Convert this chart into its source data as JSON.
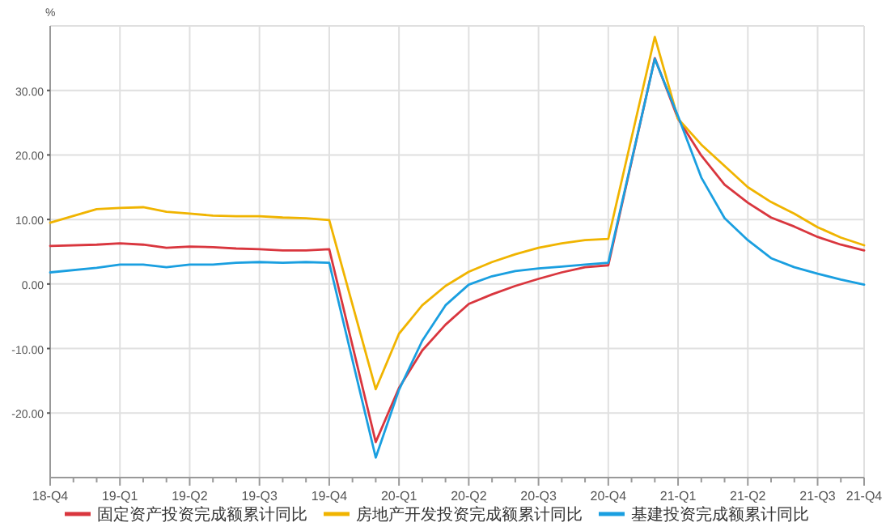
{
  "chart_data": {
    "type": "line",
    "ylabel": "%",
    "legend": "bottom",
    "grid": true,
    "line_style": "solid",
    "marker": "none",
    "categories": [
      "18-Q4",
      null,
      null,
      "19-Q1",
      null,
      null,
      "19-Q2",
      null,
      null,
      "19-Q3",
      null,
      null,
      "19-Q4",
      null,
      null,
      "20-Q1",
      null,
      null,
      "20-Q2",
      null,
      null,
      "20-Q3",
      null,
      null,
      "20-Q4",
      null,
      null,
      "21-Q1",
      null,
      null,
      "21-Q2",
      null,
      null,
      "21-Q3",
      null,
      "21-Q4"
    ],
    "ylim": [
      -30,
      40
    ],
    "yticks": [
      {
        "value": -20,
        "label": "-20.00"
      },
      {
        "value": -10,
        "label": "-10.00"
      },
      {
        "value": 0,
        "label": "0.00"
      },
      {
        "value": 10,
        "label": "10.00"
      },
      {
        "value": 20,
        "label": "20.00"
      },
      {
        "value": 30,
        "label": "30.00"
      }
    ],
    "series": [
      {
        "name": "固定资产投资完成额累计同比",
        "color": "#d9363e",
        "values": [
          5.9,
          null,
          6.1,
          6.3,
          6.1,
          5.6,
          5.8,
          5.7,
          5.5,
          5.4,
          5.2,
          5.2,
          5.4,
          null,
          -24.5,
          -16.1,
          -10.3,
          -6.3,
          -3.1,
          -1.6,
          -0.3,
          0.8,
          1.8,
          2.6,
          2.9,
          null,
          35.0,
          25.6,
          19.9,
          15.4,
          12.6,
          10.3,
          8.9,
          7.3,
          6.1,
          5.2
        ]
      },
      {
        "name": "房地产开发投资完成额累计同比",
        "color": "#f0b400",
        "values": [
          9.5,
          null,
          11.6,
          11.8,
          11.9,
          11.2,
          10.9,
          10.6,
          10.5,
          10.5,
          10.3,
          10.2,
          9.9,
          null,
          -16.3,
          -7.7,
          -3.3,
          -0.3,
          1.9,
          3.4,
          4.6,
          5.6,
          6.3,
          6.8,
          7.0,
          null,
          38.3,
          25.6,
          21.6,
          18.3,
          15.0,
          12.7,
          10.9,
          8.8,
          7.2,
          6.0
        ]
      },
      {
        "name": "基建投资完成额累计同比",
        "color": "#1a9fe0",
        "values": [
          1.8,
          null,
          2.5,
          3.0,
          3.0,
          2.6,
          3.0,
          3.0,
          3.3,
          3.4,
          3.3,
          3.4,
          3.3,
          null,
          -26.9,
          -16.4,
          -8.8,
          -3.3,
          -0.1,
          1.2,
          2.0,
          2.4,
          2.7,
          3.0,
          3.3,
          null,
          34.9,
          26.0,
          16.5,
          10.2,
          6.8,
          4.0,
          2.6,
          1.6,
          0.7,
          -0.1
        ]
      }
    ]
  }
}
